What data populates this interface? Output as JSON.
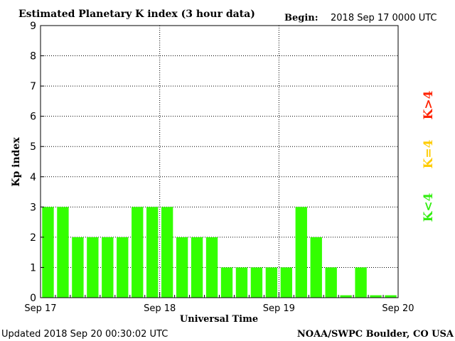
{
  "chart_data": {
    "type": "bar",
    "title": "Estimated Planetary K index (3 hour data)",
    "begin_label": "Begin:",
    "begin_value": "2018 Sep 17 0000 UTC",
    "ylabel": "Kp index",
    "xlabel": "Universal Time",
    "ylim": [
      0,
      9
    ],
    "yticks": [
      "0",
      "1",
      "2",
      "3",
      "4",
      "5",
      "6",
      "7",
      "8",
      "9"
    ],
    "xticks": [
      "Sep 17",
      "Sep 18",
      "Sep 19",
      "Sep 20"
    ],
    "grid": true,
    "values": [
      3,
      3,
      2,
      2,
      2,
      2,
      3,
      3,
      3,
      2,
      2,
      2,
      1,
      1,
      1,
      1,
      1,
      3,
      2,
      1,
      0.08,
      1,
      0.08,
      0.08
    ],
    "bar_color": "#33ff00",
    "legend": [
      {
        "text": "K<4",
        "color": "#33ee11"
      },
      {
        "text": "K=4",
        "color": "#ffcc00"
      },
      {
        "text": "K>4",
        "color": "#ff2200"
      }
    ],
    "footer_left": "Updated 2018 Sep 20 00:30:02 UTC",
    "footer_right": "NOAA/SWPC Boulder, CO USA"
  }
}
